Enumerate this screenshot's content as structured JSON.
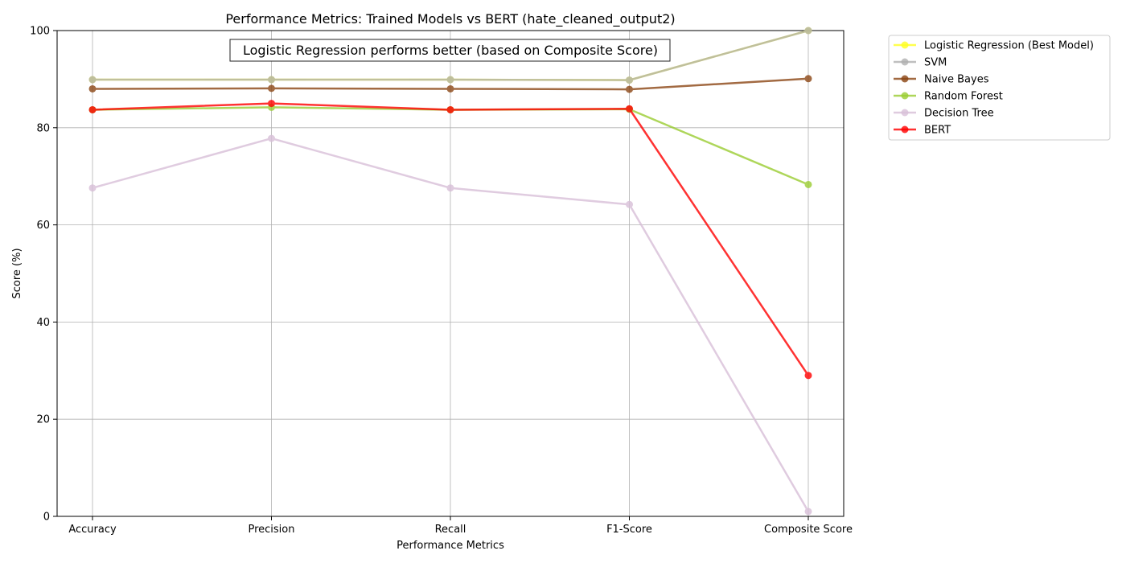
{
  "chart_data": {
    "type": "line",
    "title": "Performance Metrics: Trained Models vs BERT (hate_cleaned_output2)",
    "annotation": "Logistic Regression performs better (based on Composite Score)",
    "xlabel": "Performance Metrics",
    "ylabel": "Score (%)",
    "ylim": [
      0,
      100
    ],
    "yticks": [
      0,
      20,
      40,
      60,
      80,
      100
    ],
    "grid": true,
    "legend_position": "outside-top-right",
    "categories": [
      "Accuracy",
      "Precision",
      "Recall",
      "F1-Score",
      "Composite Score"
    ],
    "series": [
      {
        "name": "Logistic Regression (Best Model)",
        "color": "#ffff22",
        "values": [
          89.9,
          89.9,
          89.9,
          89.8,
          100.0
        ]
      },
      {
        "name": "SVM",
        "color": "#b0b0b0",
        "values": [
          89.9,
          89.9,
          89.9,
          89.8,
          100.0
        ]
      },
      {
        "name": "Naive Bayes",
        "color": "#8b4513",
        "values": [
          88.0,
          88.1,
          88.0,
          87.9,
          90.1
        ]
      },
      {
        "name": "Random Forest",
        "color": "#9acd32",
        "values": [
          83.7,
          84.2,
          83.7,
          83.8,
          68.3
        ]
      },
      {
        "name": "Decision Tree",
        "color": "#d8bfd8",
        "values": [
          67.6,
          77.8,
          67.6,
          64.2,
          1.0
        ]
      },
      {
        "name": "BERT",
        "color": "#ff0000",
        "values": [
          83.7,
          85.0,
          83.7,
          83.9,
          29.0
        ]
      }
    ]
  }
}
